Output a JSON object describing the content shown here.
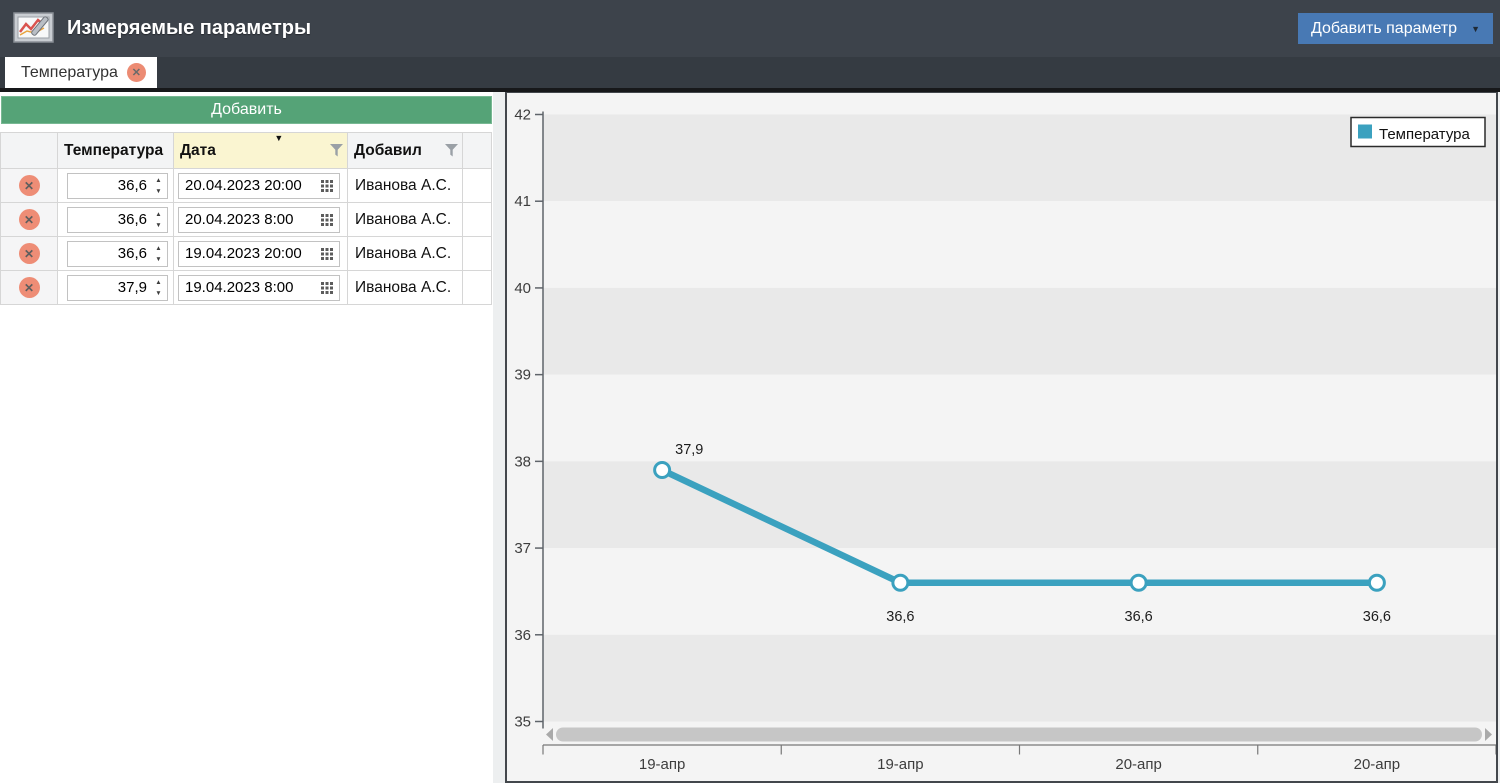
{
  "header": {
    "title": "Измеряемые параметры",
    "add_param_label": "Добавить параметр",
    "icon": "line-chart-with-pencil"
  },
  "tab": {
    "label": "Температура",
    "close_icon": "circle-x"
  },
  "left_panel": {
    "add_button_label": "Добавить",
    "table": {
      "columns": [
        "",
        "Температура",
        "Дата",
        "Добавил",
        ""
      ],
      "sorted_column": "Дата",
      "sort_direction": "desc",
      "filter_columns": [
        "Дата",
        "Добавил"
      ],
      "rows": [
        {
          "temp": "36,6",
          "date": "20.04.2023 20:00",
          "author": "Иванова А.С."
        },
        {
          "temp": "36,6",
          "date": "20.04.2023 8:00",
          "author": "Иванова А.С."
        },
        {
          "temp": "36,6",
          "date": "19.04.2023 20:00",
          "author": "Иванова А.С."
        },
        {
          "temp": "37,9",
          "date": "19.04.2023 8:00",
          "author": "Иванова А.С."
        }
      ]
    }
  },
  "chart_data": {
    "type": "line",
    "categories": [
      "19-апр",
      "19-апр",
      "20-апр",
      "20-апр"
    ],
    "series": [
      {
        "name": "Температура",
        "values": [
          37.9,
          36.6,
          36.6,
          36.6
        ],
        "color": "#3ba1bf"
      }
    ],
    "point_labels": [
      "37,9",
      "36,6",
      "36,6",
      "36,6"
    ],
    "ylim": [
      35,
      42
    ],
    "ytick_step": 1,
    "legend": [
      "Температура"
    ],
    "legend_position": "top-right",
    "grid": "alternating-horizontal-bands",
    "band_colors": [
      "#e9e9e9",
      "#f4f4f4"
    ],
    "has_horizontal_scrollbar": true
  },
  "colors": {
    "header_bg": "#3d434b",
    "accent_blue": "#4879b4",
    "accent_green": "#55a377",
    "delete_icon": "#ee8d76",
    "sorted_header_bg": "#faf5d1",
    "series_teal": "#3ba1bf"
  }
}
